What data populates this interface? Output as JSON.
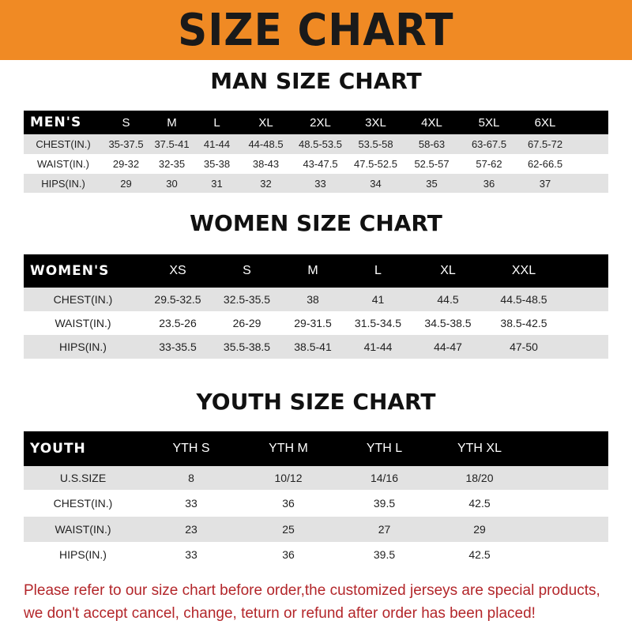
{
  "banner": {
    "title": "SIZE CHART",
    "color": "#f08a24"
  },
  "men": {
    "title": "MAN SIZE CHART",
    "header": [
      "MEN'S",
      "S",
      "M",
      "L",
      "XL",
      "2XL",
      "3XL",
      "4XL",
      "5XL",
      "6XL"
    ],
    "rows": [
      [
        "CHEST(IN.)",
        "35-37.5",
        "37.5-41",
        "41-44",
        "44-48.5",
        "48.5-53.5",
        "53.5-58",
        "58-63",
        "63-67.5",
        "67.5-72"
      ],
      [
        "WAIST(IN.)",
        "29-32",
        "32-35",
        "35-38",
        "38-43",
        "43-47.5",
        "47.5-52.5",
        "52.5-57",
        "57-62",
        "62-66.5"
      ],
      [
        "HIPS(IN.)",
        "29",
        "30",
        "31",
        "32",
        "33",
        "34",
        "35",
        "36",
        "37"
      ]
    ]
  },
  "women": {
    "title": "WOMEN SIZE CHART",
    "header": [
      "WOMEN'S",
      "XS",
      "S",
      "M",
      "L",
      "XL",
      "XXL"
    ],
    "rows": [
      [
        "CHEST(IN.)",
        "29.5-32.5",
        "32.5-35.5",
        "38",
        "41",
        "44.5",
        "44.5-48.5"
      ],
      [
        "WAIST(IN.)",
        "23.5-26",
        "26-29",
        "29-31.5",
        "31.5-34.5",
        "34.5-38.5",
        "38.5-42.5"
      ],
      [
        "HIPS(IN.)",
        "33-35.5",
        "35.5-38.5",
        "38.5-41",
        "41-44",
        "44-47",
        "47-50"
      ]
    ]
  },
  "youth": {
    "title": "YOUTH SIZE CHART",
    "header": [
      "YOUTH",
      "YTH S",
      "YTH M",
      "YTH L",
      "YTH XL"
    ],
    "rows": [
      [
        "U.S.SIZE",
        "8",
        "10/12",
        "14/16",
        "18/20"
      ],
      [
        "CHEST(IN.)",
        "33",
        "36",
        "39.5",
        "42.5"
      ],
      [
        "WAIST(IN.)",
        "23",
        "25",
        "27",
        "29"
      ],
      [
        "HIPS(IN.)",
        "33",
        "36",
        "39.5",
        "42.5"
      ]
    ]
  },
  "footer": {
    "line1": "Please refer to our size chart before order,the customized jerseys are special products,",
    "line2": "we don't accept cancel, change, teturn or refund after order has been placed!",
    "color": "#b3262a"
  }
}
